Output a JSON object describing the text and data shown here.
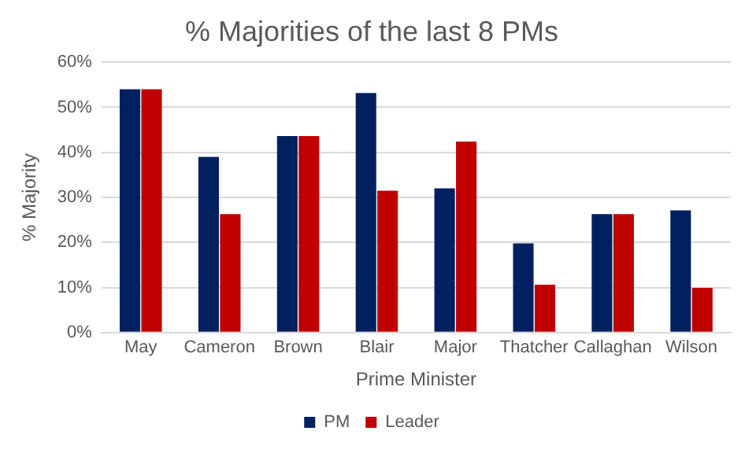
{
  "chart_data": {
    "type": "bar",
    "title": "% Majorities of the last 8 PMs",
    "xlabel": "Prime Minister",
    "ylabel": "% Majority",
    "categories": [
      "May",
      "Cameron",
      "Brown",
      "Blair",
      "Major",
      "Thatcher",
      "Callaghan",
      "Wilson"
    ],
    "series": [
      {
        "name": "PM",
        "color": "#002060",
        "values": [
          54,
          39,
          43.6,
          53.2,
          32,
          19.8,
          26.3,
          27.1
        ]
      },
      {
        "name": "Leader",
        "color": "#c00000",
        "values": [
          54,
          26.3,
          43.6,
          31.5,
          42.4,
          10.6,
          26.3,
          9.9
        ]
      }
    ],
    "ylim": [
      0,
      60
    ],
    "yticks": [
      {
        "value": 0,
        "label": "0%"
      },
      {
        "value": 10,
        "label": "10%"
      },
      {
        "value": 20,
        "label": "20%"
      },
      {
        "value": 30,
        "label": "30%"
      },
      {
        "value": 40,
        "label": "40%"
      },
      {
        "value": 50,
        "label": "50%"
      },
      {
        "value": 60,
        "label": "60%"
      }
    ],
    "grid": "y",
    "legend": "bottom"
  }
}
